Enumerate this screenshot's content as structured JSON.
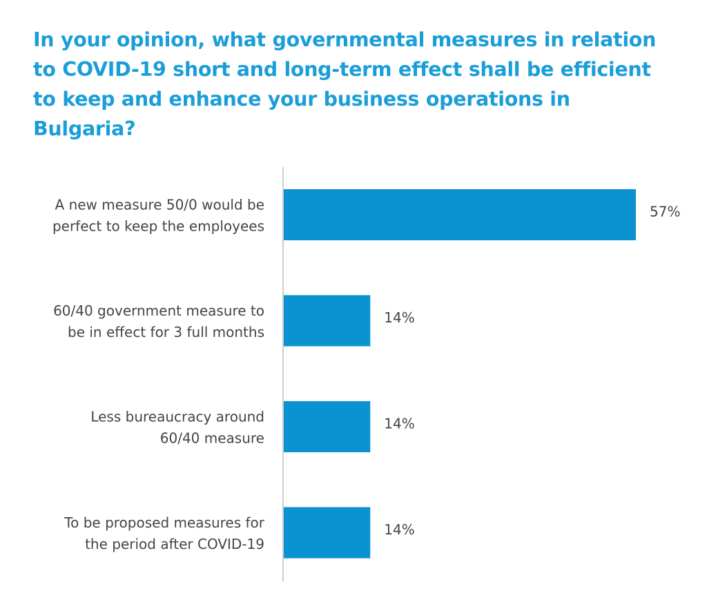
{
  "chart_data": {
    "type": "bar",
    "orientation": "horizontal",
    "title_lines": [
      "In your opinion, what governmental measures in relation",
      "to COVID-19 short and long-term effect shall be efficient",
      "to keep and enhance your business operations in",
      "Bulgaria?"
    ],
    "categories": [
      [
        "A new measure 50/0 would be",
        "perfect to keep the employees"
      ],
      [
        "60/40 government measure to",
        "be in effect for 3 full months"
      ],
      [
        "Less bureaucracy around",
        "60/40 measure"
      ],
      [
        "To be proposed measures for",
        "the period after COVID-19"
      ]
    ],
    "values": [
      57,
      14,
      14,
      14
    ],
    "value_labels": [
      "57%",
      "14%",
      "14%",
      "14%"
    ],
    "unit": "%",
    "xlim": [
      0,
      57
    ],
    "grid": false,
    "legend": "none",
    "bar_color": "#0a92d1",
    "axis_color": "#cccccc",
    "title_color": "#1b9ed8",
    "text_color": "#444444"
  }
}
